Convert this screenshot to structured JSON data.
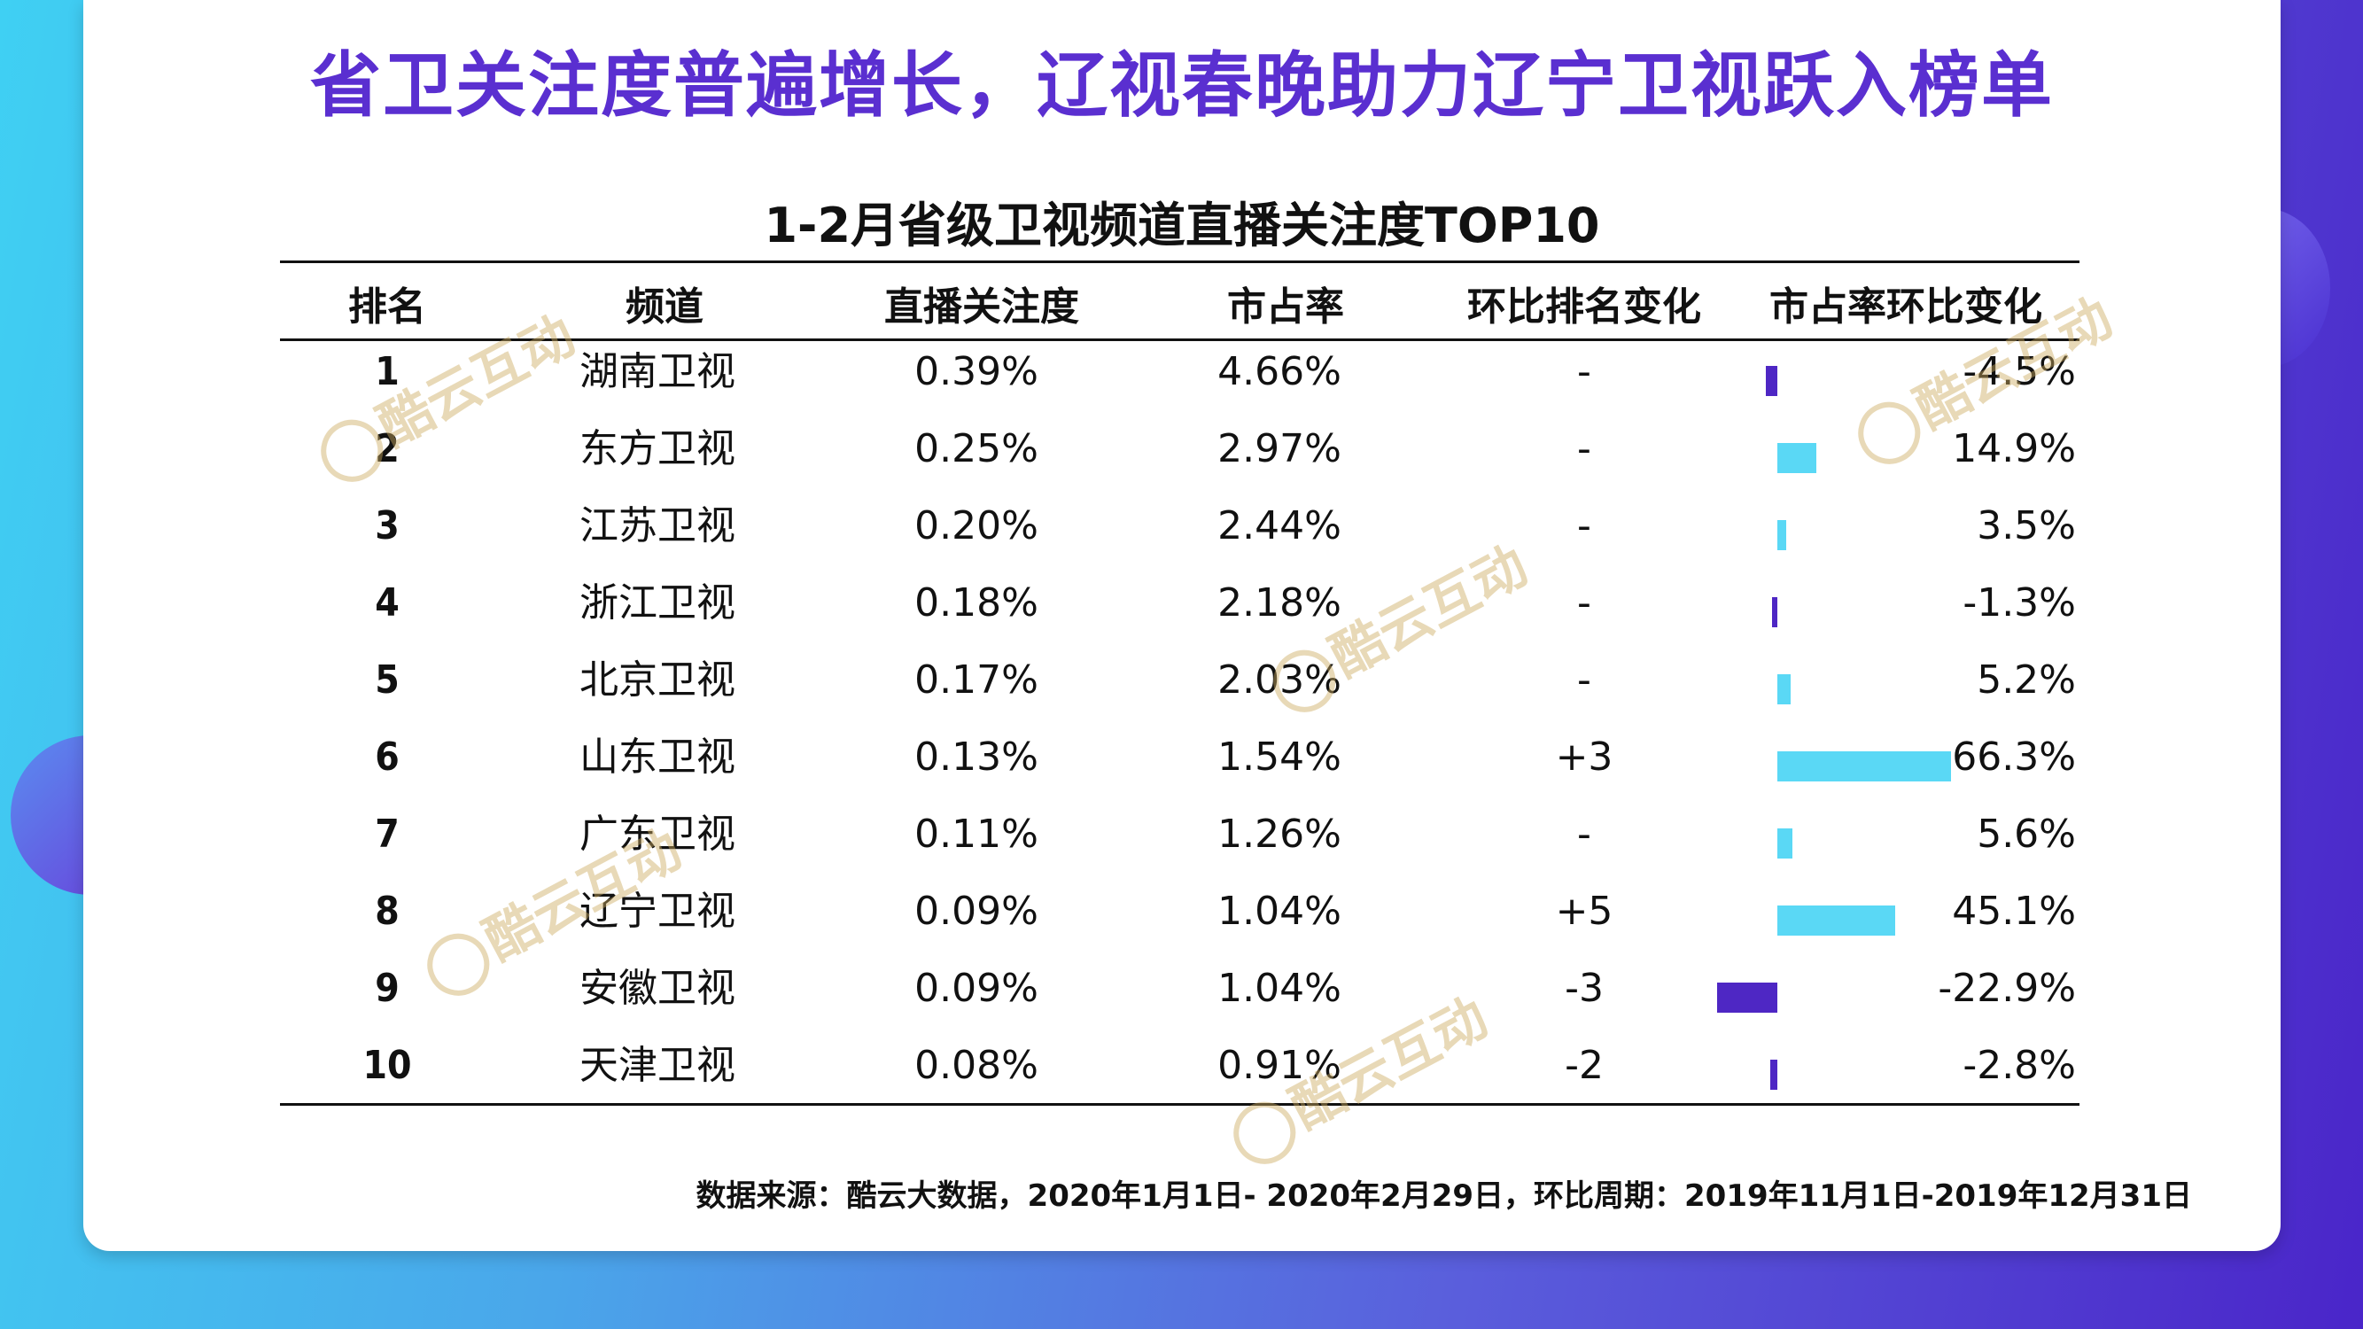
{
  "title": "省卫关注度普遍增长，辽视春晚助力辽宁卫视跃入榜单",
  "watermark": "酷云互动",
  "colors": {
    "positive": "#5ad8f5",
    "negative": "#4e27c4",
    "title": "#5a2fd0"
  },
  "chart_data": {
    "type": "table",
    "title": "1-2月省级卫视频道直播关注度TOP10",
    "columns": [
      "排名",
      "频道",
      "直播关注度",
      "市占率",
      "环比排名变化",
      "市占率环比变化"
    ],
    "rows": [
      {
        "rank": "1",
        "channel": "湖南卫视",
        "attention": "0.39%",
        "share": "4.66%",
        "rank_change": "-",
        "share_change": "-4.5%",
        "share_change_value": -4.5
      },
      {
        "rank": "2",
        "channel": "东方卫视",
        "attention": "0.25%",
        "share": "2.97%",
        "rank_change": "-",
        "share_change": "14.9%",
        "share_change_value": 14.9
      },
      {
        "rank": "3",
        "channel": "江苏卫视",
        "attention": "0.20%",
        "share": "2.44%",
        "rank_change": "-",
        "share_change": "3.5%",
        "share_change_value": 3.5
      },
      {
        "rank": "4",
        "channel": "浙江卫视",
        "attention": "0.18%",
        "share": "2.18%",
        "rank_change": "-",
        "share_change": "-1.3%",
        "share_change_value": -1.3
      },
      {
        "rank": "5",
        "channel": "北京卫视",
        "attention": "0.17%",
        "share": "2.03%",
        "rank_change": "-",
        "share_change": "5.2%",
        "share_change_value": 5.2
      },
      {
        "rank": "6",
        "channel": "山东卫视",
        "attention": "0.13%",
        "share": "1.54%",
        "rank_change": "+3",
        "share_change": "66.3%",
        "share_change_value": 66.3
      },
      {
        "rank": "7",
        "channel": "广东卫视",
        "attention": "0.11%",
        "share": "1.26%",
        "rank_change": "-",
        "share_change": "5.6%",
        "share_change_value": 5.6
      },
      {
        "rank": "8",
        "channel": "辽宁卫视",
        "attention": "0.09%",
        "share": "1.04%",
        "rank_change": "+5",
        "share_change": "45.1%",
        "share_change_value": 45.1
      },
      {
        "rank": "9",
        "channel": "安徽卫视",
        "attention": "0.09%",
        "share": "1.04%",
        "rank_change": "-3",
        "share_change": "-22.9%",
        "share_change_value": -22.9
      },
      {
        "rank": "10",
        "channel": "天津卫视",
        "attention": "0.08%",
        "share": "0.91%",
        "rank_change": "-2",
        "share_change": "-2.8%",
        "share_change_value": -2.8
      }
    ]
  },
  "footer": "数据来源：酷云大数据，2020年1月1日- 2020年2月29日，环比周期：2019年11月1日-2019年12月31日"
}
